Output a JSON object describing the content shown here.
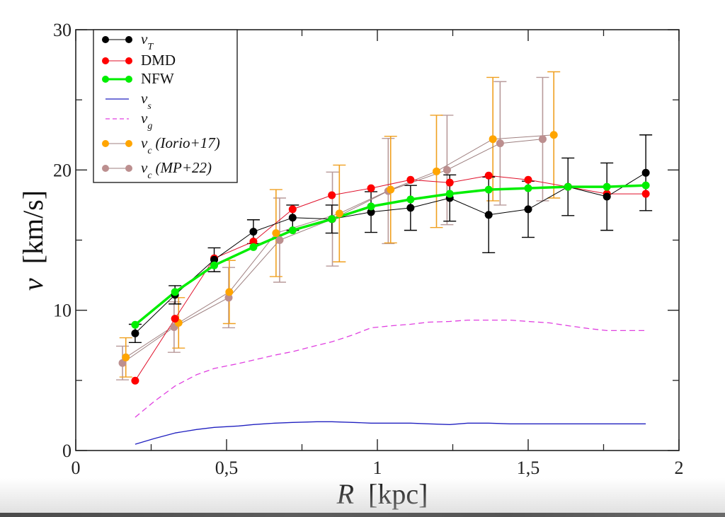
{
  "chart_data": {
    "type": "line",
    "title": "",
    "xlabel": "R [kpc]",
    "xlabel_parts": {
      "symbol": "R",
      "unit": "[kpc]"
    },
    "ylabel": "v [km/s]",
    "ylabel_parts": {
      "symbol": "v",
      "unit": "[km/s]"
    },
    "xlim": [
      0,
      2
    ],
    "ylim": [
      0,
      30
    ],
    "x_ticks": [
      {
        "value": 0,
        "label": "0"
      },
      {
        "value": 0.5,
        "label": "0,5"
      },
      {
        "value": 1,
        "label": "1"
      },
      {
        "value": 1.5,
        "label": "1,5"
      },
      {
        "value": 2,
        "label": "2"
      }
    ],
    "x_minor_ticks": [
      0.25,
      0.75,
      1.25,
      1.75
    ],
    "y_ticks": [
      {
        "value": 0,
        "label": "0"
      },
      {
        "value": 10,
        "label": "10"
      },
      {
        "value": 20,
        "label": "20"
      },
      {
        "value": 30,
        "label": "30"
      }
    ],
    "y_minor_ticks": [
      5,
      15,
      25
    ],
    "grid": false,
    "legend_position": "top-left",
    "series": [
      {
        "name": "v_T",
        "label_main": "v",
        "label_sub": "T",
        "label_suffix": "",
        "color": "#000000",
        "line_color": "#000000",
        "style": "line-marker",
        "line_width": 1,
        "x": [
          0.197,
          0.329,
          0.459,
          0.589,
          0.719,
          0.849,
          0.979,
          1.11,
          1.24,
          1.369,
          1.5,
          1.632,
          1.761,
          1.89
        ],
        "y": [
          8.35,
          11.1,
          13.6,
          15.6,
          16.6,
          16.5,
          17.0,
          17.3,
          18.0,
          16.8,
          17.2,
          18.8,
          18.1,
          19.8
        ],
        "err": [
          0.65,
          0.65,
          0.85,
          0.85,
          0.9,
          1.0,
          1.45,
          1.6,
          1.65,
          2.7,
          2.0,
          2.05,
          2.4,
          2.7
        ]
      },
      {
        "name": "DMD",
        "label_main": "DMD",
        "label_sub": "",
        "label_suffix": "",
        "color": "#ff0000",
        "line_color": "#e0102a",
        "style": "line-marker",
        "line_width": 1,
        "x": [
          0.197,
          0.329,
          0.459,
          0.589,
          0.719,
          0.849,
          0.979,
          1.11,
          1.24,
          1.369,
          1.5,
          1.632,
          1.761,
          1.89
        ],
        "y": [
          4.98,
          9.4,
          13.7,
          14.9,
          17.2,
          18.2,
          18.7,
          19.3,
          19.1,
          19.6,
          19.3,
          18.8,
          18.3,
          18.3
        ]
      },
      {
        "name": "NFW",
        "label_main": "NFW",
        "label_sub": "",
        "label_suffix": "",
        "color": "#00ee00",
        "line_color": "#00ee00",
        "style": "line-marker",
        "line_width": 3.5,
        "x": [
          0.197,
          0.329,
          0.459,
          0.589,
          0.719,
          0.849,
          0.979,
          1.11,
          1.24,
          1.369,
          1.5,
          1.632,
          1.761,
          1.89
        ],
        "y": [
          8.96,
          11.3,
          13.2,
          14.5,
          15.7,
          16.5,
          17.4,
          17.9,
          18.3,
          18.6,
          18.7,
          18.8,
          18.8,
          18.9
        ]
      },
      {
        "name": "v_s",
        "label_main": "v",
        "label_sub": "s",
        "label_suffix": "",
        "color": "#2020c0",
        "line_color": "#2020c0",
        "style": "line",
        "line_width": 1.3,
        "x": [
          0.197,
          0.26,
          0.329,
          0.4,
          0.459,
          0.54,
          0.589,
          0.66,
          0.719,
          0.8,
          0.849,
          0.92,
          0.979,
          1.05,
          1.11,
          1.17,
          1.24,
          1.3,
          1.369,
          1.44,
          1.5,
          1.632,
          1.761,
          1.89
        ],
        "y": [
          0.45,
          0.85,
          1.25,
          1.5,
          1.65,
          1.75,
          1.85,
          1.95,
          2.0,
          2.05,
          2.05,
          2.0,
          1.95,
          1.95,
          1.95,
          1.9,
          1.85,
          1.95,
          1.95,
          1.9,
          1.9,
          1.9,
          1.9,
          1.9
        ]
      },
      {
        "name": "v_g",
        "label_main": "v",
        "label_sub": "g",
        "label_suffix": "",
        "color": "#e040e0",
        "line_color": "#e040e0",
        "style": "dashed",
        "line_width": 1.3,
        "x": [
          0.197,
          0.26,
          0.329,
          0.4,
          0.459,
          0.54,
          0.589,
          0.66,
          0.719,
          0.8,
          0.849,
          0.92,
          0.979,
          1.05,
          1.11,
          1.17,
          1.24,
          1.3,
          1.369,
          1.44,
          1.5,
          1.57,
          1.632,
          1.7,
          1.761,
          1.89
        ],
        "y": [
          2.37,
          3.5,
          4.6,
          5.4,
          5.85,
          6.2,
          6.45,
          6.8,
          7.05,
          7.5,
          7.75,
          8.25,
          8.75,
          8.9,
          9.0,
          9.15,
          9.2,
          9.3,
          9.3,
          9.3,
          9.2,
          9.1,
          8.9,
          8.7,
          8.55,
          8.55
        ]
      },
      {
        "name": "v_c (Iorio+17)",
        "label_main": "v",
        "label_sub": "c",
        "label_suffix": "(Iorio+17)",
        "color": "#ffa500",
        "line_color": "#a08080",
        "err_color": "#f0a020",
        "style": "line-marker",
        "line_width": 1,
        "x": [
          0.166,
          0.341,
          0.509,
          0.664,
          0.874,
          1.044,
          1.196,
          1.383,
          1.585
        ],
        "y": [
          6.64,
          9.1,
          11.3,
          15.5,
          16.9,
          18.6,
          19.9,
          22.2,
          22.5
        ],
        "err": [
          1.4,
          1.8,
          2.25,
          3.1,
          3.45,
          3.8,
          4.0,
          4.4,
          4.5
        ]
      },
      {
        "name": "v_c (MP+22)",
        "label_main": "v",
        "label_sub": "c",
        "label_suffix": "(MP+22)",
        "color": "#bc8f8f",
        "line_color": "#9c7f7f",
        "err_color": "#b89a9a",
        "style": "line-marker",
        "line_width": 1,
        "x": [
          0.155,
          0.326,
          0.507,
          0.676,
          0.851,
          1.036,
          1.231,
          1.407,
          1.548
        ],
        "y": [
          6.24,
          8.8,
          10.9,
          15.0,
          16.5,
          18.5,
          20.0,
          21.9,
          22.2
        ],
        "err": [
          1.2,
          1.8,
          2.15,
          3.0,
          3.35,
          3.75,
          3.9,
          4.4,
          4.4
        ]
      }
    ]
  }
}
